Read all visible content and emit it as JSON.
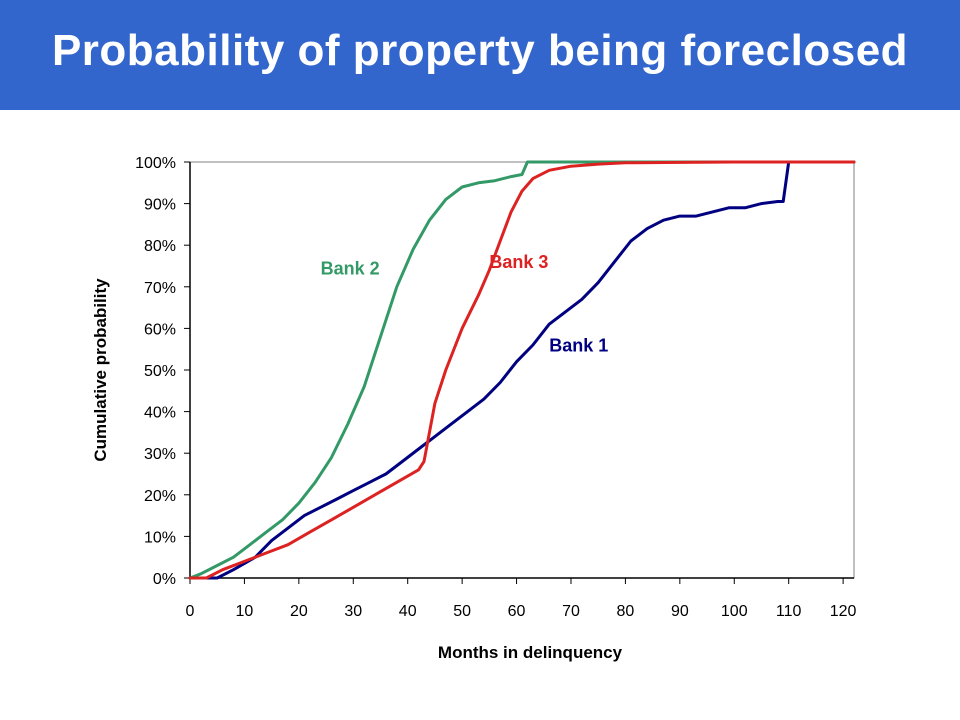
{
  "header": {
    "title": "Probability of property being foreclosed",
    "background_color": "#3366cc"
  },
  "chart_data": {
    "type": "line",
    "title": "Probability of property being foreclosed",
    "xlabel": "Months in delinquency",
    "ylabel": "Cumulative probability",
    "xlim": [
      0,
      122
    ],
    "ylim": [
      0,
      1
    ],
    "x_ticks": [
      0,
      10,
      20,
      30,
      40,
      50,
      60,
      70,
      80,
      90,
      100,
      110,
      120
    ],
    "y_ticks": [
      0,
      0.1,
      0.2,
      0.3,
      0.4,
      0.5,
      0.6,
      0.7,
      0.8,
      0.9,
      1.0
    ],
    "x_tick_labels": [
      "0",
      "10",
      "20",
      "30",
      "40",
      "50",
      "60",
      "70",
      "80",
      "90",
      "100",
      "110",
      "120"
    ],
    "y_tick_labels": [
      "0%",
      "10%",
      "20%",
      "30%",
      "40%",
      "50%",
      "60%",
      "70%",
      "80%",
      "90%",
      "100%"
    ],
    "grid": false,
    "legend": "inline labels",
    "series": [
      {
        "name": "Bank 1",
        "color": "#000080",
        "x": [
          0,
          5,
          8,
          12,
          15,
          18,
          21,
          24,
          27,
          30,
          33,
          36,
          39,
          42,
          45,
          48,
          51,
          54,
          57,
          60,
          63,
          66,
          69,
          72,
          75,
          78,
          81,
          84,
          87,
          90,
          93,
          96,
          99,
          102,
          105,
          108,
          109,
          110,
          112,
          122
        ],
        "y": [
          0,
          0,
          0.02,
          0.05,
          0.09,
          0.12,
          0.15,
          0.17,
          0.19,
          0.21,
          0.23,
          0.25,
          0.28,
          0.31,
          0.34,
          0.37,
          0.4,
          0.43,
          0.47,
          0.52,
          0.56,
          0.61,
          0.64,
          0.67,
          0.71,
          0.76,
          0.81,
          0.84,
          0.86,
          0.87,
          0.87,
          0.88,
          0.89,
          0.89,
          0.9,
          0.905,
          0.905,
          1.0,
          1.0,
          1.0
        ]
      },
      {
        "name": "Bank 2",
        "color": "#339966",
        "x": [
          0,
          2,
          5,
          8,
          11,
          14,
          17,
          20,
          23,
          26,
          29,
          32,
          35,
          38,
          41,
          44,
          47,
          50,
          53,
          56,
          59,
          61,
          62,
          70,
          122
        ],
        "y": [
          0,
          0.01,
          0.03,
          0.05,
          0.08,
          0.11,
          0.14,
          0.18,
          0.23,
          0.29,
          0.37,
          0.46,
          0.58,
          0.7,
          0.79,
          0.86,
          0.91,
          0.94,
          0.95,
          0.955,
          0.965,
          0.97,
          1.0,
          1.0,
          1.0
        ]
      },
      {
        "name": "Bank 3",
        "color": "#dd2222",
        "x": [
          0,
          3,
          6,
          10,
          14,
          18,
          22,
          26,
          30,
          34,
          38,
          42,
          43,
          45,
          47,
          50,
          53,
          55,
          57,
          59,
          61,
          63,
          66,
          70,
          75,
          80,
          90,
          100,
          122
        ],
        "y": [
          0,
          0,
          0.02,
          0.04,
          0.06,
          0.08,
          0.11,
          0.14,
          0.17,
          0.2,
          0.23,
          0.26,
          0.28,
          0.42,
          0.5,
          0.6,
          0.68,
          0.74,
          0.81,
          0.88,
          0.93,
          0.96,
          0.98,
          0.99,
          0.995,
          0.998,
          0.999,
          1.0,
          1.0
        ]
      }
    ],
    "annotations": [
      {
        "text": "Bank 1",
        "color": "#000080",
        "x": 66,
        "y": 0.545
      },
      {
        "text": "Bank 2",
        "color": "#339966",
        "x": 24,
        "y": 0.73
      },
      {
        "text": "Bank 3",
        "color": "#dd2222",
        "x": 55,
        "y": 0.745
      }
    ]
  }
}
